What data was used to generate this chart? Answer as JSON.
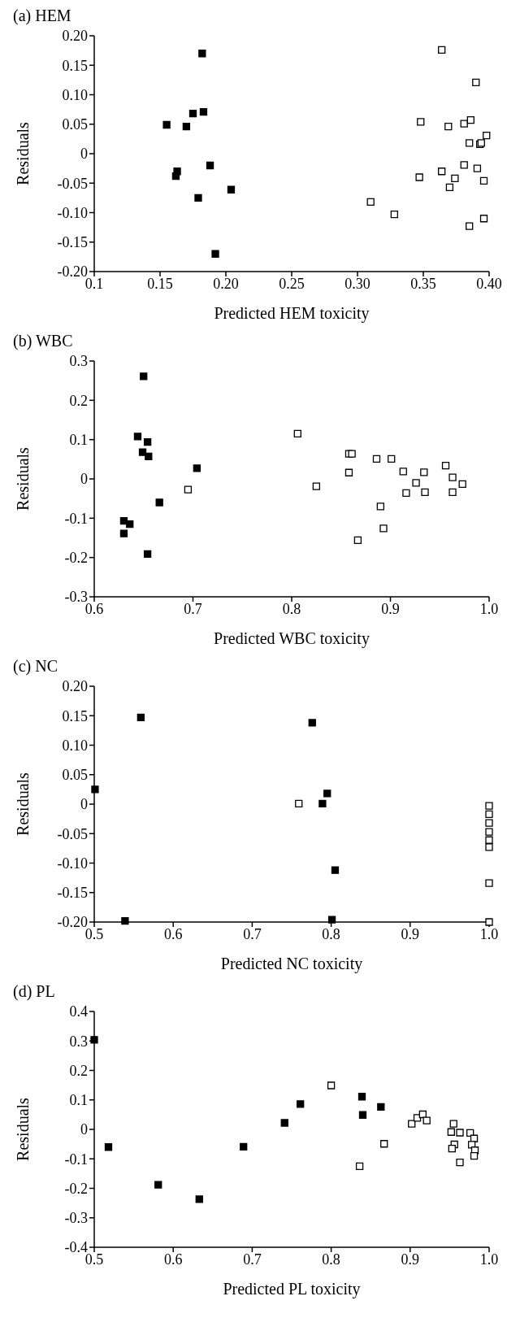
{
  "chart_data": [
    {
      "type": "scatter",
      "title": "(a) HEM",
      "xlabel": "Predicted HEM toxicity",
      "ylabel": "Residuals",
      "marker": "square",
      "grid": false,
      "legend": false,
      "xlim": [
        0.1,
        0.4
      ],
      "xticks": [
        0.1,
        0.15,
        {
          "value": 0.2,
          "label": "0.20"
        },
        0.25,
        {
          "value": 0.3,
          "label": "0.30"
        },
        0.35,
        {
          "value": 0.4,
          "label": "0.40"
        }
      ],
      "ylim": [
        -0.2,
        0.2
      ],
      "yticks": [
        {
          "value": -0.2,
          "label": "-0.20"
        },
        -0.15,
        {
          "value": -0.1,
          "label": "-0.10"
        },
        -0.05,
        0,
        0.05,
        {
          "value": 0.1,
          "label": "0.10"
        },
        0.15,
        {
          "value": 0.2,
          "label": "0.20"
        }
      ],
      "series": [
        {
          "color": "#000000",
          "x": [
            0.182,
            0.183,
            0.175,
            0.155,
            0.17,
            0.188,
            0.163,
            0.162,
            0.179,
            0.204,
            0.192
          ],
          "values": [
            0.17,
            0.071,
            0.068,
            0.049,
            0.046,
            -0.02,
            -0.03,
            -0.038,
            -0.075,
            -0.061,
            -0.17
          ]
        },
        {
          "color": "#ffffff",
          "x": [
            0.364,
            0.39,
            0.348,
            0.369,
            0.381,
            0.386,
            0.398,
            0.385,
            0.393,
            0.394,
            0.381,
            0.391,
            0.364,
            0.347,
            0.374,
            0.396,
            0.37,
            0.31,
            0.328,
            0.396,
            0.385
          ],
          "values": [
            0.176,
            0.121,
            0.054,
            0.046,
            0.051,
            0.057,
            0.031,
            0.018,
            0.016,
            0.018,
            -0.019,
            -0.025,
            -0.03,
            -0.04,
            -0.042,
            -0.046,
            -0.057,
            -0.082,
            -0.103,
            -0.11,
            -0.123
          ]
        }
      ]
    },
    {
      "type": "scatter",
      "title": "(b) WBC",
      "xlabel": "Predicted WBC toxicity",
      "ylabel": "Residuals",
      "marker": "square",
      "grid": false,
      "legend": false,
      "xlim": [
        0.6,
        1.0
      ],
      "xticks": [
        0.6,
        0.7,
        0.8,
        0.9,
        {
          "value": 1,
          "label": "1.0"
        }
      ],
      "ylim": [
        -0.3,
        0.3
      ],
      "yticks": [
        -0.3,
        -0.2,
        -0.1,
        0,
        0.1,
        0.2,
        0.3
      ],
      "series": [
        {
          "color": "#000000",
          "x": [
            0.65,
            0.644,
            0.654,
            0.649,
            0.655,
            0.704,
            0.666,
            0.63,
            0.636,
            0.63,
            0.654
          ],
          "values": [
            0.261,
            0.108,
            0.094,
            0.068,
            0.057,
            0.027,
            -0.06,
            -0.107,
            -0.115,
            -0.139,
            -0.191
          ]
        },
        {
          "color": "#ffffff",
          "x": [
            0.695,
            0.806,
            0.825,
            0.858,
            0.861,
            0.858,
            0.886,
            0.901,
            0.913,
            0.934,
            0.926,
            0.916,
            0.935,
            0.89,
            0.893,
            0.867,
            0.956,
            0.963,
            0.973,
            0.963
          ],
          "values": [
            -0.027,
            0.115,
            -0.019,
            0.064,
            0.064,
            0.016,
            0.051,
            0.051,
            0.019,
            0.017,
            -0.01,
            -0.036,
            -0.034,
            -0.07,
            -0.126,
            -0.156,
            0.034,
            0.004,
            -0.013,
            -0.034
          ]
        }
      ]
    },
    {
      "type": "scatter",
      "title": "(c) NC",
      "xlabel": "Predicted NC toxicity",
      "ylabel": "Residuals",
      "marker": "square",
      "grid": false,
      "legend": false,
      "xlim": [
        0.5,
        1.0
      ],
      "xticks": [
        0.5,
        0.6,
        0.7,
        0.8,
        0.9,
        {
          "value": 1,
          "label": "1.0"
        }
      ],
      "ylim": [
        -0.2,
        0.2
      ],
      "yticks": [
        {
          "value": -0.2,
          "label": "-0.20"
        },
        -0.15,
        {
          "value": -0.1,
          "label": "-0.10"
        },
        -0.05,
        0,
        0.05,
        {
          "value": 0.1,
          "label": "0.10"
        },
        0.15,
        {
          "value": 0.2,
          "label": "0.20"
        }
      ],
      "series": [
        {
          "color": "#000000",
          "x": [
            0.501,
            0.559,
            0.539,
            0.776,
            0.795,
            0.789,
            0.805,
            0.801
          ],
          "values": [
            0.025,
            0.147,
            -0.198,
            0.138,
            0.018,
            0.001,
            -0.112,
            -0.196
          ]
        },
        {
          "color": "#ffffff",
          "x": [
            0.759,
            1.0,
            1.0,
            1.0,
            1.0,
            1.0,
            1.0,
            1.0,
            1.0
          ],
          "values": [
            0.001,
            -0.003,
            -0.017,
            -0.032,
            -0.047,
            -0.061,
            -0.073,
            -0.134,
            -0.2
          ]
        }
      ]
    },
    {
      "type": "scatter",
      "title": "(d) PL",
      "xlabel": "Predicted PL toxicity",
      "ylabel": "Residuals",
      "marker": "square",
      "grid": false,
      "legend": false,
      "xlim": [
        0.5,
        1.0
      ],
      "xticks": [
        0.5,
        0.6,
        0.7,
        0.8,
        0.9,
        {
          "value": 1,
          "label": "1.0"
        }
      ],
      "ylim": [
        -0.4,
        0.4
      ],
      "yticks": [
        -0.4,
        -0.3,
        -0.2,
        -0.1,
        0,
        0.1,
        0.2,
        0.3,
        0.4
      ],
      "series": [
        {
          "color": "#000000",
          "x": [
            0.5,
            0.518,
            0.581,
            0.633,
            0.689,
            0.741,
            0.761,
            0.839,
            0.84,
            0.863
          ],
          "values": [
            0.304,
            -0.06,
            -0.188,
            -0.237,
            -0.059,
            0.022,
            0.086,
            0.111,
            0.049,
            0.076
          ]
        },
        {
          "color": "#ffffff",
          "x": [
            0.8,
            0.836,
            0.867,
            0.902,
            0.909,
            0.916,
            0.921,
            0.955,
            0.952,
            0.963,
            0.956,
            0.953,
            0.963,
            0.976,
            0.981,
            0.978,
            0.982,
            0.981
          ],
          "values": [
            0.149,
            -0.125,
            -0.049,
            0.019,
            0.039,
            0.051,
            0.03,
            0.019,
            -0.009,
            -0.011,
            -0.051,
            -0.065,
            -0.112,
            -0.012,
            -0.031,
            -0.052,
            -0.071,
            -0.09
          ]
        }
      ]
    }
  ]
}
